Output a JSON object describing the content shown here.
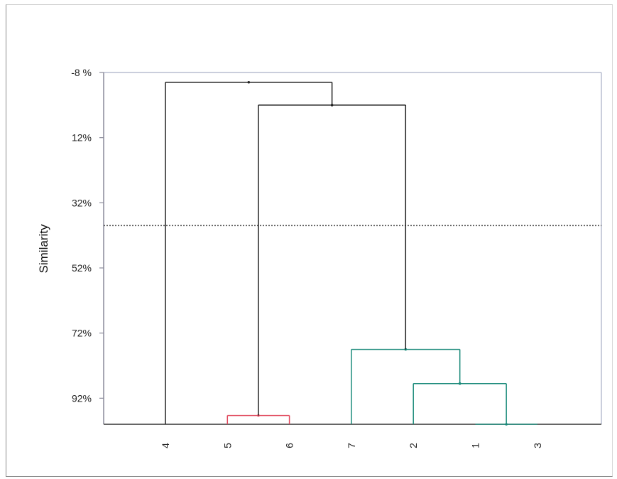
{
  "chart_data": {
    "type": "dendrogram",
    "ylabel": "Similarity",
    "ylim": [
      -8,
      100
    ],
    "y_ticks": [
      {
        "value": -8,
        "label": "-8 %"
      },
      {
        "value": 12,
        "label": "12%"
      },
      {
        "value": 32,
        "label": "32%"
      },
      {
        "value": 52,
        "label": "52%"
      },
      {
        "value": 72,
        "label": "72%"
      },
      {
        "value": 92,
        "label": "92%"
      }
    ],
    "leaves": [
      "4",
      "5",
      "6",
      "7",
      "2",
      "1",
      "3"
    ],
    "cutoff_similarity": 39,
    "grid": false,
    "merges": [
      {
        "left": "1",
        "right": "3",
        "similarity": 100,
        "color": "#1a8a7a"
      },
      {
        "left": "5",
        "right": "6",
        "similarity": 97.3,
        "color": "#e0455a"
      },
      {
        "left": "2",
        "right": "1,3",
        "similarity": 87.5,
        "color": "#1a8a7a"
      },
      {
        "left": "7",
        "right": "2,1,3",
        "similarity": 77,
        "color": "#1a8a7a"
      },
      {
        "left": "5,6",
        "right": "7,2,1,3",
        "similarity": 2,
        "color": "#222222"
      },
      {
        "left": "4",
        "right": "5,6,7,2,1,3",
        "similarity": -5,
        "color": "#222222"
      }
    ],
    "colors": {
      "axis": "#8a8a9a",
      "cutoff": "#555555",
      "cluster_red": "#e0455a",
      "cluster_teal": "#1a8a7a",
      "link_dark": "#222222"
    }
  }
}
